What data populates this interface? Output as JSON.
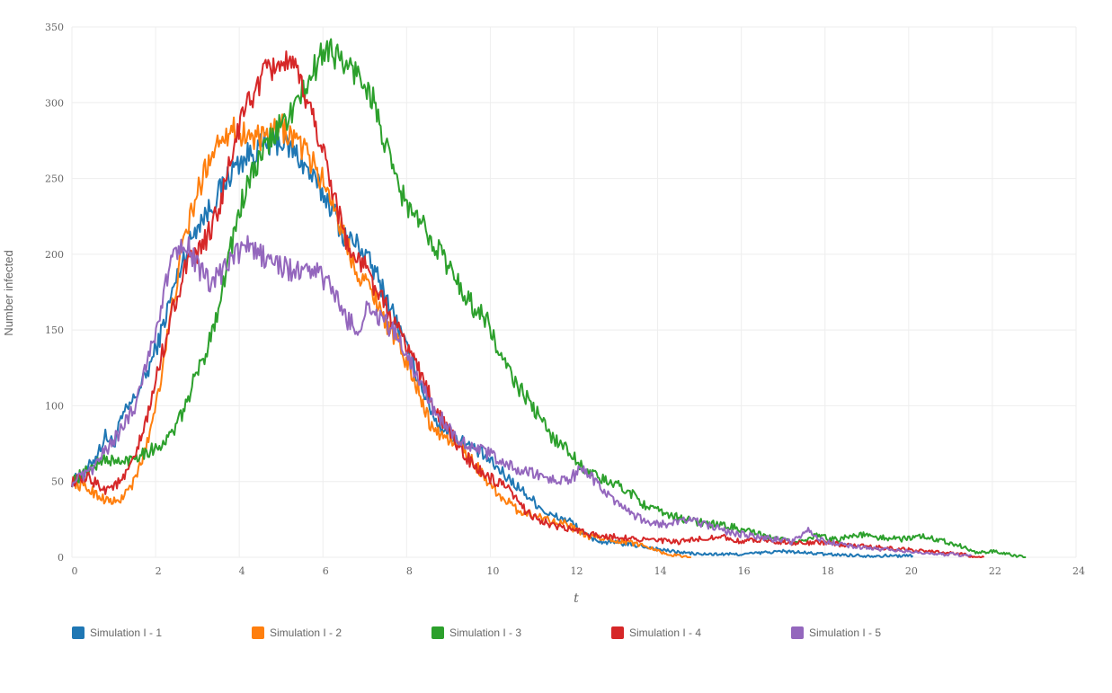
{
  "chart_data": {
    "type": "line",
    "xlabel": "t",
    "ylabel": "Number infected",
    "xlim": [
      0,
      24
    ],
    "ylim": [
      0,
      350
    ],
    "xticks": [
      0,
      2,
      4,
      6,
      8,
      10,
      12,
      14,
      16,
      18,
      20,
      22,
      24
    ],
    "yticks": [
      0,
      50,
      100,
      150,
      200,
      250,
      300,
      350
    ],
    "grid": true,
    "legend_position": "bottom",
    "series": [
      {
        "name": "Simulation I - 1",
        "color": "#1f77b4",
        "points": [
          [
            0,
            50
          ],
          [
            0.3,
            55
          ],
          [
            0.6,
            68
          ],
          [
            0.8,
            80
          ],
          [
            1.0,
            75
          ],
          [
            1.2,
            92
          ],
          [
            1.5,
            105
          ],
          [
            1.8,
            122
          ],
          [
            2.1,
            145
          ],
          [
            2.4,
            175
          ],
          [
            2.7,
            200
          ],
          [
            3.0,
            220
          ],
          [
            3.3,
            230
          ],
          [
            3.6,
            245
          ],
          [
            3.9,
            258
          ],
          [
            4.2,
            265
          ],
          [
            4.6,
            272
          ],
          [
            5.0,
            275
          ],
          [
            5.4,
            265
          ],
          [
            5.8,
            248
          ],
          [
            6.2,
            232
          ],
          [
            6.5,
            212
          ],
          [
            6.9,
            205
          ],
          [
            7.3,
            185
          ],
          [
            7.7,
            160
          ],
          [
            8.1,
            130
          ],
          [
            8.4,
            110
          ],
          [
            8.7,
            90
          ],
          [
            9.0,
            82
          ],
          [
            9.4,
            75
          ],
          [
            9.8,
            68
          ],
          [
            10.2,
            58
          ],
          [
            10.6,
            48
          ],
          [
            11.0,
            38
          ],
          [
            11.4,
            28
          ],
          [
            11.9,
            24
          ],
          [
            12.3,
            14
          ],
          [
            12.7,
            10
          ],
          [
            13.2,
            9
          ],
          [
            13.7,
            7
          ],
          [
            14.3,
            4
          ],
          [
            15.0,
            2
          ],
          [
            16.0,
            2
          ],
          [
            17.0,
            4
          ],
          [
            18.0,
            2
          ],
          [
            19.0,
            1
          ],
          [
            20.1,
            1
          ]
        ]
      },
      {
        "name": "Simulation I - 2",
        "color": "#ff7f0e",
        "points": [
          [
            0,
            50
          ],
          [
            0.4,
            45
          ],
          [
            0.8,
            38
          ],
          [
            1.1,
            36
          ],
          [
            1.5,
            50
          ],
          [
            1.8,
            75
          ],
          [
            2.1,
            115
          ],
          [
            2.4,
            165
          ],
          [
            2.7,
            212
          ],
          [
            3.0,
            240
          ],
          [
            3.3,
            265
          ],
          [
            3.6,
            280
          ],
          [
            3.9,
            282
          ],
          [
            4.2,
            278
          ],
          [
            4.6,
            275
          ],
          [
            5.0,
            284
          ],
          [
            5.4,
            275
          ],
          [
            5.8,
            258
          ],
          [
            6.2,
            238
          ],
          [
            6.5,
            212
          ],
          [
            6.8,
            190
          ],
          [
            7.2,
            175
          ],
          [
            7.6,
            150
          ],
          [
            7.9,
            135
          ],
          [
            8.3,
            110
          ],
          [
            8.6,
            85
          ],
          [
            9.0,
            78
          ],
          [
            9.4,
            70
          ],
          [
            9.8,
            55
          ],
          [
            10.2,
            42
          ],
          [
            10.6,
            32
          ],
          [
            11.0,
            28
          ],
          [
            11.4,
            25
          ],
          [
            11.8,
            22
          ],
          [
            12.3,
            14
          ],
          [
            12.8,
            12
          ],
          [
            13.3,
            10
          ],
          [
            13.8,
            7
          ],
          [
            14.2,
            2
          ],
          [
            14.8,
            0
          ]
        ]
      },
      {
        "name": "Simulation I - 3",
        "color": "#2ca02c",
        "points": [
          [
            0,
            50
          ],
          [
            0.4,
            58
          ],
          [
            0.8,
            65
          ],
          [
            1.2,
            62
          ],
          [
            1.6,
            68
          ],
          [
            2.0,
            72
          ],
          [
            2.3,
            78
          ],
          [
            2.6,
            92
          ],
          [
            2.9,
            115
          ],
          [
            3.2,
            135
          ],
          [
            3.5,
            165
          ],
          [
            3.8,
            205
          ],
          [
            4.1,
            238
          ],
          [
            4.4,
            258
          ],
          [
            4.8,
            278
          ],
          [
            5.2,
            292
          ],
          [
            5.5,
            305
          ],
          [
            5.8,
            322
          ],
          [
            6.1,
            338
          ],
          [
            6.5,
            325
          ],
          [
            6.9,
            318
          ],
          [
            7.2,
            302
          ],
          [
            7.5,
            270
          ],
          [
            7.8,
            245
          ],
          [
            8.1,
            228
          ],
          [
            8.4,
            218
          ],
          [
            8.8,
            202
          ],
          [
            9.2,
            182
          ],
          [
            9.6,
            165
          ],
          [
            9.9,
            158
          ],
          [
            10.2,
            135
          ],
          [
            10.6,
            115
          ],
          [
            11.0,
            100
          ],
          [
            11.4,
            82
          ],
          [
            11.8,
            72
          ],
          [
            12.2,
            60
          ],
          [
            12.6,
            52
          ],
          [
            13.0,
            48
          ],
          [
            13.4,
            42
          ],
          [
            13.8,
            32
          ],
          [
            14.3,
            28
          ],
          [
            14.8,
            24
          ],
          [
            15.3,
            22
          ],
          [
            15.8,
            20
          ],
          [
            16.3,
            16
          ],
          [
            16.8,
            12
          ],
          [
            17.3,
            10
          ],
          [
            17.8,
            14
          ],
          [
            18.3,
            12
          ],
          [
            18.8,
            15
          ],
          [
            19.3,
            13
          ],
          [
            19.8,
            12
          ],
          [
            20.2,
            14
          ],
          [
            20.7,
            12
          ],
          [
            21.2,
            8
          ],
          [
            21.6,
            3
          ],
          [
            22.0,
            4
          ],
          [
            22.4,
            2
          ],
          [
            22.8,
            0
          ]
        ]
      },
      {
        "name": "Simulation I - 4",
        "color": "#d62728",
        "points": [
          [
            0,
            50
          ],
          [
            0.4,
            52
          ],
          [
            0.8,
            45
          ],
          [
            1.2,
            50
          ],
          [
            1.5,
            65
          ],
          [
            1.8,
            92
          ],
          [
            2.1,
            128
          ],
          [
            2.4,
            162
          ],
          [
            2.7,
            190
          ],
          [
            3.0,
            200
          ],
          [
            3.3,
            215
          ],
          [
            3.6,
            238
          ],
          [
            3.9,
            275
          ],
          [
            4.2,
            300
          ],
          [
            4.6,
            318
          ],
          [
            5.0,
            328
          ],
          [
            5.4,
            318
          ],
          [
            5.8,
            288
          ],
          [
            6.1,
            258
          ],
          [
            6.4,
            225
          ],
          [
            6.7,
            198
          ],
          [
            7.0,
            192
          ],
          [
            7.3,
            175
          ],
          [
            7.6,
            160
          ],
          [
            7.9,
            145
          ],
          [
            8.2,
            130
          ],
          [
            8.5,
            110
          ],
          [
            8.8,
            92
          ],
          [
            9.2,
            75
          ],
          [
            9.6,
            60
          ],
          [
            10.0,
            52
          ],
          [
            10.4,
            45
          ],
          [
            10.8,
            32
          ],
          [
            11.2,
            24
          ],
          [
            11.6,
            20
          ],
          [
            12.0,
            18
          ],
          [
            12.4,
            15
          ],
          [
            12.8,
            14
          ],
          [
            13.2,
            13
          ],
          [
            13.6,
            12
          ],
          [
            14.0,
            11
          ],
          [
            14.5,
            10
          ],
          [
            15.0,
            12
          ],
          [
            15.5,
            14
          ],
          [
            16.0,
            10
          ],
          [
            16.5,
            12
          ],
          [
            17.0,
            10
          ],
          [
            17.5,
            9
          ],
          [
            18.0,
            10
          ],
          [
            18.5,
            8
          ],
          [
            19.0,
            7
          ],
          [
            19.5,
            6
          ],
          [
            20.0,
            5
          ],
          [
            20.5,
            4
          ],
          [
            21.0,
            3
          ],
          [
            21.5,
            1
          ],
          [
            21.8,
            0
          ]
        ]
      },
      {
        "name": "Simulation I - 5",
        "color": "#9467bd",
        "points": [
          [
            0,
            50
          ],
          [
            0.4,
            55
          ],
          [
            0.8,
            70
          ],
          [
            1.2,
            85
          ],
          [
            1.5,
            100
          ],
          [
            1.8,
            130
          ],
          [
            2.1,
            160
          ],
          [
            2.4,
            200
          ],
          [
            2.7,
            210
          ],
          [
            3.0,
            192
          ],
          [
            3.3,
            180
          ],
          [
            3.6,
            188
          ],
          [
            3.9,
            200
          ],
          [
            4.2,
            205
          ],
          [
            4.6,
            198
          ],
          [
            5.0,
            192
          ],
          [
            5.4,
            188
          ],
          [
            5.8,
            190
          ],
          [
            6.2,
            178
          ],
          [
            6.5,
            160
          ],
          [
            6.8,
            150
          ],
          [
            7.1,
            165
          ],
          [
            7.4,
            158
          ],
          [
            7.7,
            148
          ],
          [
            8.0,
            135
          ],
          [
            8.3,
            118
          ],
          [
            8.6,
            100
          ],
          [
            9.0,
            85
          ],
          [
            9.4,
            75
          ],
          [
            9.8,
            70
          ],
          [
            10.2,
            65
          ],
          [
            10.6,
            58
          ],
          [
            11.0,
            55
          ],
          [
            11.4,
            52
          ],
          [
            11.8,
            50
          ],
          [
            12.2,
            58
          ],
          [
            12.6,
            48
          ],
          [
            13.0,
            35
          ],
          [
            13.4,
            28
          ],
          [
            13.8,
            22
          ],
          [
            14.3,
            22
          ],
          [
            14.8,
            25
          ],
          [
            15.3,
            20
          ],
          [
            15.8,
            16
          ],
          [
            16.3,
            14
          ],
          [
            16.8,
            12
          ],
          [
            17.2,
            10
          ],
          [
            17.6,
            18
          ],
          [
            18.0,
            10
          ],
          [
            18.5,
            8
          ],
          [
            19.0,
            6
          ],
          [
            19.5,
            5
          ],
          [
            20.0,
            4
          ],
          [
            20.5,
            2
          ],
          [
            21.0,
            2
          ],
          [
            21.5,
            1
          ]
        ]
      }
    ]
  }
}
